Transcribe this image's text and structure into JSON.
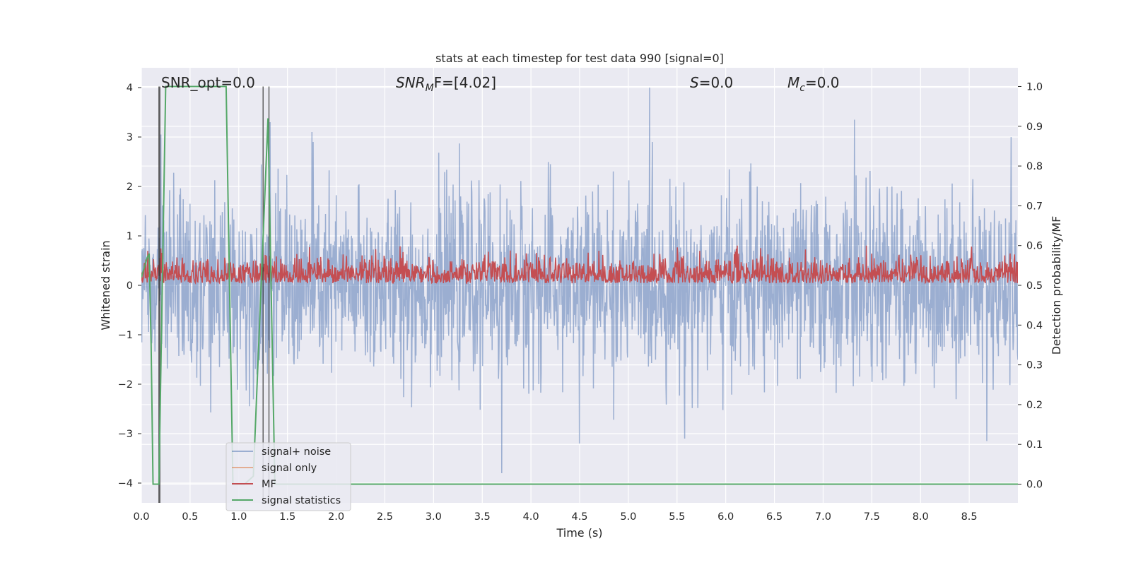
{
  "chart_data": {
    "type": "line",
    "title": "stats at each timestep for test data 990 [signal=0]",
    "xlabel": "Time (s)",
    "ylabel": "Whitened strain",
    "y2label": "Detection probability/MF",
    "xlim": [
      0.0,
      9.0
    ],
    "ylim": [
      -4.4,
      4.4
    ],
    "y2lim": [
      -0.047,
      1.047
    ],
    "xticks": [
      "0.0",
      "0.5",
      "1.0",
      "1.5",
      "2.0",
      "2.5",
      "3.0",
      "3.5",
      "4.0",
      "4.5",
      "5.0",
      "5.5",
      "6.0",
      "6.5",
      "7.0",
      "7.5",
      "8.0",
      "8.5"
    ],
    "yticks": [
      "4",
      "3",
      "2",
      "1",
      "0",
      "−1",
      "−2",
      "−3",
      "−4"
    ],
    "y2ticks": [
      "1.0",
      "0.9",
      "0.8",
      "0.7",
      "0.6",
      "0.5",
      "0.4",
      "0.3",
      "0.2",
      "0.1",
      "0.0"
    ],
    "grid": true,
    "legend_position": "lower-left",
    "annotations": {
      "snr_opt": "SNR_opt=0.0",
      "snr_mf_sym": "SNR",
      "snr_mf_sub": "M",
      "snr_mf_rest": "F=[4.02]",
      "s_sym": "S",
      "s_val": "=0.0",
      "mc_sym": "M",
      "mc_sub": "c",
      "mc_val": "=0.0"
    },
    "series": [
      {
        "name": "signal+ noise",
        "color": "#4c72b0",
        "axis": "left",
        "description_stats": {
          "mean": 0.0,
          "std": 0.9,
          "max": 4.0,
          "min": -3.8
        },
        "notable_peaks": [
          {
            "x": 0.2,
            "y": 3.05
          },
          {
            "x": 1.32,
            "y": 3.3
          },
          {
            "x": 1.75,
            "y": 3.1
          },
          {
            "x": 5.22,
            "y": 4.0
          },
          {
            "x": 7.32,
            "y": 3.35
          },
          {
            "x": 8.93,
            "y": 3.0
          },
          {
            "x": 3.7,
            "y": -3.8
          },
          {
            "x": 4.5,
            "y": -3.2
          },
          {
            "x": 5.58,
            "y": -3.1
          },
          {
            "x": 8.68,
            "y": -3.15
          }
        ]
      },
      {
        "name": "signal only",
        "color": "#dd8452",
        "axis": "left",
        "values": "zero"
      },
      {
        "name": "MF",
        "color": "#c44e52",
        "axis": "right",
        "description_stats": {
          "baseline": 0.505,
          "max": 0.6,
          "min": 0.5
        }
      },
      {
        "name": "signal statistics",
        "color": "#55a868",
        "axis": "right",
        "points": [
          [
            0.0,
            0.52
          ],
          [
            0.06,
            0.57
          ],
          [
            0.08,
            0.58
          ],
          [
            0.1,
            0.35
          ],
          [
            0.12,
            0.0
          ],
          [
            0.18,
            0.0
          ],
          [
            0.25,
            1.0
          ],
          [
            0.87,
            1.0
          ],
          [
            0.94,
            0.0
          ],
          [
            1.06,
            0.0
          ],
          [
            1.15,
            0.02
          ],
          [
            1.3,
            0.92
          ],
          [
            1.37,
            0.0
          ],
          [
            9.0,
            0.0
          ]
        ]
      }
    ],
    "vertical_markers": [
      0.18,
      0.19,
      1.25,
      1.31
    ]
  }
}
